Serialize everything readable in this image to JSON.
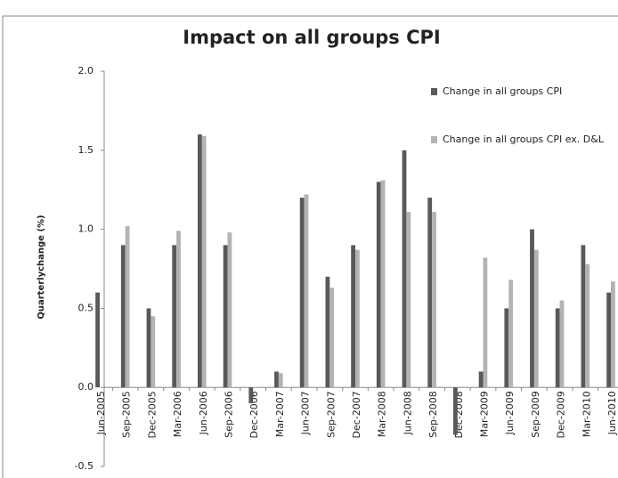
{
  "chart_data": {
    "type": "bar",
    "title": "Impact on all groups CPI",
    "y_label": "Quarterlychange  (%)",
    "categories": [
      "Jun-2005",
      "Sep-2005",
      "Dec-2005",
      "Mar-2006",
      "Jun-2006",
      "Sep-2006",
      "Dec-2006",
      "Mar-2007",
      "Jun-2007",
      "Sep-2007",
      "Dec-2007",
      "Mar-2008",
      "Jun-2008",
      "Sep-2008",
      "Dec-2008",
      "Mar-2009",
      "Jun-2009",
      "Sep-2009",
      "Dec-2009",
      "Mar-2010",
      "Jun-2010"
    ],
    "series": [
      {
        "name": "Change in all groups CPI",
        "color": "#595959",
        "values": [
          0.6,
          0.9,
          0.5,
          0.9,
          1.6,
          0.9,
          -0.1,
          0.1,
          1.2,
          0.7,
          0.9,
          1.3,
          1.5,
          1.2,
          -0.3,
          0.1,
          0.5,
          1.0,
          0.5,
          0.9,
          0.6
        ]
      },
      {
        "name": "Change in all groups CPI ex. D&L",
        "color": "#b3b3b3",
        "values": [
          null,
          1.02,
          0.45,
          0.99,
          1.59,
          0.98,
          0,
          0.09,
          1.22,
          0.63,
          0.87,
          1.31,
          1.11,
          1.11,
          0,
          0.82,
          0.68,
          0.87,
          0.55,
          0.78,
          0.67
        ]
      }
    ],
    "ylim": [
      -0.5,
      2.0
    ],
    "yticks": [
      -0.5,
      {
        "value": 0,
        "label": "0.0"
      },
      0.5,
      {
        "value": 1,
        "label": "1.0"
      },
      1.5,
      {
        "value": 2,
        "label": "2.0"
      }
    ],
    "legend": "top-right"
  }
}
